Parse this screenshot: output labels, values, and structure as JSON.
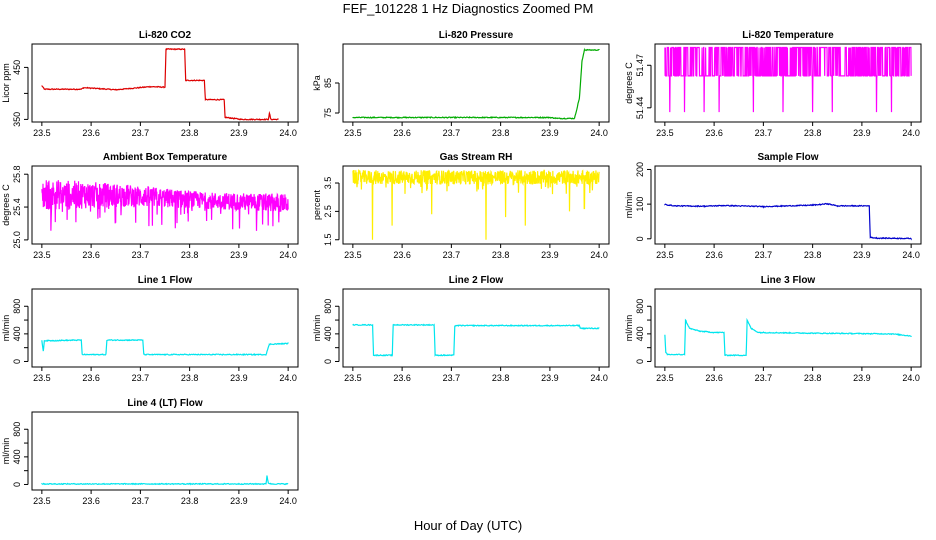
{
  "figure": {
    "title": "FEF_101228  1 Hz Diagnostics Zoomed PM",
    "xlabel": "Hour of Day (UTC)"
  },
  "chart_data": [
    {
      "type": "line",
      "title": "Li-820 CO2",
      "ylabel": "Licor ppm",
      "color": "#dd0000",
      "xlim": [
        23.5,
        24.0
      ],
      "ylim": [
        345,
        495
      ],
      "xticks": [
        "23.5",
        "23.6",
        "23.7",
        "23.8",
        "23.9",
        "24.0"
      ],
      "yticks": [
        350,
        400,
        450
      ],
      "ytick_labels": [
        "350",
        "",
        "450"
      ],
      "series": [
        {
          "name": "CO2",
          "x": [
            23.5,
            23.505,
            23.58,
            23.585,
            23.65,
            23.72,
            23.75,
            23.752,
            23.79,
            23.792,
            23.83,
            23.832,
            23.87,
            23.872,
            23.905,
            23.96,
            23.962,
            23.965,
            23.98
          ],
          "y": [
            415,
            408,
            408,
            411,
            407,
            413,
            412,
            485,
            485,
            425,
            425,
            388,
            388,
            354,
            350,
            350,
            362,
            350,
            350
          ]
        }
      ]
    },
    {
      "type": "line",
      "title": "Li-820 Pressure",
      "ylabel": "kPa",
      "color": "#00aa00",
      "xlim": [
        23.5,
        24.0
      ],
      "ylim": [
        72,
        98
      ],
      "xticks": [
        "23.5",
        "23.6",
        "23.7",
        "23.8",
        "23.9",
        "24.0"
      ],
      "yticks": [
        75,
        85
      ],
      "ytick_labels": [
        "75",
        "85"
      ],
      "series": [
        {
          "name": "Pressure",
          "x": [
            23.5,
            23.9,
            23.915,
            23.95,
            23.96,
            23.965,
            23.97,
            24.0
          ],
          "y": [
            73.5,
            73.5,
            73.2,
            73.2,
            80,
            92,
            96,
            96
          ]
        }
      ]
    },
    {
      "type": "line",
      "title": "Li-820 Temperature",
      "ylabel": "degrees C",
      "color": "#ff00ff",
      "xlim": [
        23.5,
        24.0
      ],
      "ylim": [
        51.43,
        51.485
      ],
      "xticks": [
        "23.5",
        "23.6",
        "23.7",
        "23.8",
        "23.9",
        "24.0"
      ],
      "yticks": [
        51.44,
        51.47
      ],
      "ytick_labels": [
        "51.44",
        "51.47"
      ],
      "levels": [
        51.4625,
        51.4825
      ],
      "spike_x": [
        23.51,
        23.54,
        23.58,
        23.61,
        23.68,
        23.74,
        23.8,
        23.84,
        23.93,
        23.96
      ],
      "spike_y": 51.437
    },
    {
      "type": "line",
      "title": "Ambient Box Temperature",
      "ylabel": "degrees C",
      "color": "#ff00ff",
      "xlim": [
        23.5,
        24.0
      ],
      "ylim": [
        24.95,
        25.9
      ],
      "xticks": [
        "23.5",
        "23.6",
        "23.7",
        "23.8",
        "23.9",
        "24.0"
      ],
      "yticks": [
        25.0,
        25.4,
        25.8
      ],
      "ytick_labels": [
        "25.0",
        "25.4",
        "25.8"
      ],
      "band_low": [
        25.36,
        25.4,
        25.38,
        25.33
      ],
      "band_high": [
        25.75,
        25.68,
        25.58,
        25.56
      ],
      "noise": 0.16
    },
    {
      "type": "line",
      "title": "Gas Stream RH",
      "ylabel": "percent",
      "color": "#ffee00",
      "xlim": [
        23.5,
        24.0
      ],
      "ylim": [
        1.35,
        4.1
      ],
      "xticks": [
        "23.5",
        "23.6",
        "23.7",
        "23.8",
        "23.9",
        "24.0"
      ],
      "yticks": [
        1.5,
        2.5,
        3.5
      ],
      "ytick_labels": [
        "1.5",
        "2.5",
        "3.5"
      ],
      "band": [
        3.45,
        3.95
      ],
      "dips_x": [
        23.54,
        23.58,
        23.66,
        23.77,
        23.81,
        23.85,
        23.94,
        23.97
      ],
      "dips_y": [
        1.5,
        2.0,
        2.4,
        1.5,
        2.3,
        2.0,
        2.5,
        2.6
      ]
    },
    {
      "type": "line",
      "title": "Sample Flow",
      "ylabel": "ml/min",
      "color": "#0000cc",
      "xlim": [
        23.5,
        24.0
      ],
      "ylim": [
        -15,
        210
      ],
      "xticks": [
        "23.5",
        "23.6",
        "23.7",
        "23.8",
        "23.9",
        "24.0"
      ],
      "yticks": [
        0,
        100,
        200
      ],
      "ytick_labels": [
        "0",
        "100",
        "200"
      ],
      "series": [
        {
          "name": "Sample Flow",
          "x": [
            23.5,
            23.52,
            23.58,
            23.62,
            23.7,
            23.8,
            23.83,
            23.85,
            23.915,
            23.917,
            23.93,
            24.0
          ],
          "y": [
            99,
            95,
            94,
            96,
            93,
            97,
            101,
            95,
            95,
            4,
            2,
            1
          ]
        }
      ]
    },
    {
      "type": "line",
      "title": "Line 1 Flow",
      "ylabel": "ml/min",
      "color": "#00e5ee",
      "xlim": [
        23.5,
        24.0
      ],
      "ylim": [
        -80,
        1050
      ],
      "xticks": [
        "23.5",
        "23.6",
        "23.7",
        "23.8",
        "23.9",
        "24.0"
      ],
      "yticks": [
        0,
        200,
        400,
        600,
        800
      ],
      "ytick_labels": [
        "0",
        "",
        "400",
        "",
        "800"
      ],
      "series": [
        {
          "name": "Line 1",
          "x": [
            23.5,
            23.503,
            23.505,
            23.58,
            23.582,
            23.63,
            23.632,
            23.705,
            23.707,
            23.955,
            23.962,
            24.0
          ],
          "y": [
            300,
            150,
            300,
            310,
            100,
            100,
            310,
            310,
            100,
            100,
            250,
            260
          ]
        }
      ]
    },
    {
      "type": "line",
      "title": "Line 2 Flow",
      "ylabel": "ml/min",
      "color": "#00e5ee",
      "xlim": [
        23.5,
        24.0
      ],
      "ylim": [
        -80,
        1050
      ],
      "xticks": [
        "23.5",
        "23.6",
        "23.7",
        "23.8",
        "23.9",
        "24.0"
      ],
      "yticks": [
        0,
        200,
        400,
        600,
        800
      ],
      "ytick_labels": [
        "0",
        "",
        "400",
        "",
        "800"
      ],
      "series": [
        {
          "name": "Line 2",
          "x": [
            23.5,
            23.54,
            23.542,
            23.58,
            23.582,
            23.665,
            23.667,
            23.705,
            23.707,
            23.96,
            23.962,
            24.0
          ],
          "y": [
            530,
            530,
            90,
            90,
            530,
            530,
            90,
            90,
            520,
            520,
            480,
            480
          ]
        }
      ]
    },
    {
      "type": "line",
      "title": "Line 3 Flow",
      "ylabel": "ml/min",
      "color": "#00e5ee",
      "xlim": [
        23.5,
        24.0
      ],
      "ylim": [
        -80,
        1050
      ],
      "xticks": [
        "23.5",
        "23.6",
        "23.7",
        "23.8",
        "23.9",
        "24.0"
      ],
      "yticks": [
        0,
        200,
        400,
        600,
        800
      ],
      "ytick_labels": [
        "0",
        "",
        "400",
        "",
        "800"
      ],
      "series": [
        {
          "name": "Line 3",
          "x": [
            23.5,
            23.502,
            23.505,
            23.54,
            23.542,
            23.55,
            23.57,
            23.6,
            23.62,
            23.622,
            23.665,
            23.667,
            23.675,
            23.69,
            23.8,
            23.96,
            24.0
          ],
          "y": [
            380,
            130,
            100,
            100,
            600,
            480,
            440,
            420,
            420,
            90,
            90,
            600,
            480,
            420,
            410,
            400,
            370
          ]
        }
      ]
    },
    {
      "type": "line",
      "title": "Line 4 (LT) Flow",
      "ylabel": "ml/min",
      "color": "#00e5ee",
      "xlim": [
        23.5,
        24.0
      ],
      "ylim": [
        -80,
        1050
      ],
      "xticks": [
        "23.5",
        "23.6",
        "23.7",
        "23.8",
        "23.9",
        "24.0"
      ],
      "yticks": [
        0,
        200,
        400,
        600,
        800
      ],
      "ytick_labels": [
        "0",
        "",
        "400",
        "",
        "800"
      ],
      "series": [
        {
          "name": "Line 4",
          "x": [
            23.5,
            23.955,
            23.957,
            23.96,
            23.965,
            24.0
          ],
          "y": [
            8,
            8,
            130,
            20,
            8,
            8
          ]
        }
      ]
    }
  ]
}
